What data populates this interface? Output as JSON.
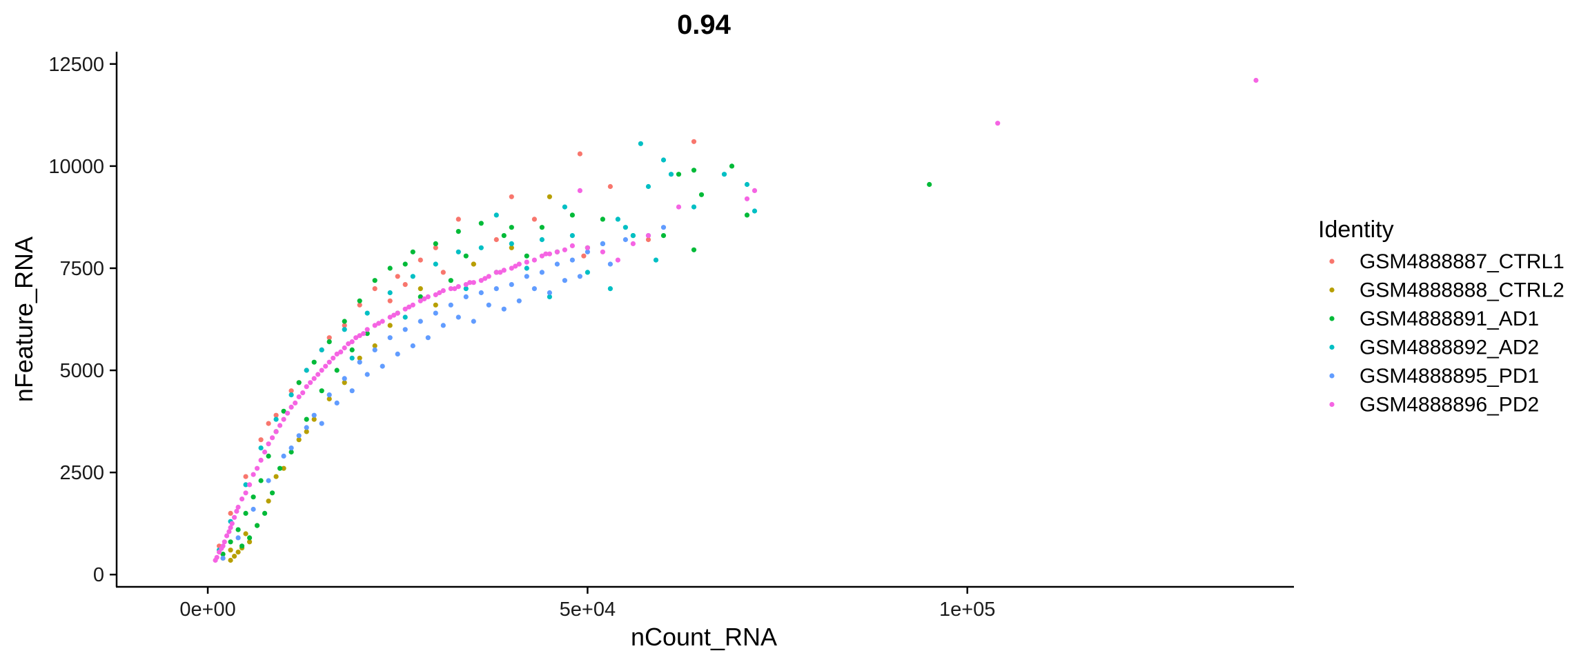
{
  "chart_data": {
    "type": "scatter",
    "title": "0.94",
    "xlabel": "nCount_RNA",
    "ylabel": "nFeature_RNA",
    "xlim": [
      -12000,
      143000
    ],
    "ylim": [
      -300,
      12800
    ],
    "x_ticks": [
      0,
      50000,
      100000
    ],
    "x_tick_labels": [
      "0e+00",
      "5e+04",
      "1e+05"
    ],
    "y_ticks": [
      0,
      2500,
      5000,
      7500,
      10000,
      12500
    ],
    "y_tick_labels": [
      "0",
      "2500",
      "5000",
      "7500",
      "10000",
      "12500"
    ],
    "grid": false,
    "legend": {
      "title": "Identity",
      "position": "right"
    },
    "series": [
      {
        "name": "GSM4888887_CTRL1",
        "color": "#F8766D",
        "points": [
          [
            1500,
            700
          ],
          [
            3000,
            1500
          ],
          [
            5000,
            2400
          ],
          [
            7000,
            3300
          ],
          [
            9000,
            3900
          ],
          [
            11000,
            4500
          ],
          [
            13000,
            5000
          ],
          [
            15000,
            5500
          ],
          [
            18000,
            6100
          ],
          [
            20000,
            6600
          ],
          [
            22000,
            7000
          ],
          [
            25000,
            7300
          ],
          [
            28000,
            7700
          ],
          [
            30000,
            8000
          ],
          [
            33000,
            8700
          ],
          [
            38000,
            8200
          ],
          [
            40000,
            9250
          ],
          [
            43000,
            8700
          ],
          [
            49000,
            10300
          ],
          [
            49500,
            7800
          ],
          [
            53000,
            9500
          ],
          [
            58000,
            8200
          ],
          [
            64000,
            10600
          ],
          [
            8000,
            3700
          ],
          [
            12000,
            4700
          ],
          [
            16000,
            5800
          ],
          [
            24000,
            6700
          ],
          [
            26000,
            7100
          ],
          [
            31000,
            7400
          ],
          [
            35000,
            7600
          ]
        ]
      },
      {
        "name": "GSM4888888_CTRL2",
        "color": "#B79F00",
        "points": [
          [
            2000,
            400
          ],
          [
            3000,
            350
          ],
          [
            3500,
            450
          ],
          [
            4000,
            550
          ],
          [
            4500,
            650
          ],
          [
            5500,
            800
          ],
          [
            6500,
            1200
          ],
          [
            8000,
            1800
          ],
          [
            10000,
            2600
          ],
          [
            12000,
            3300
          ],
          [
            14000,
            3800
          ],
          [
            16000,
            4300
          ],
          [
            20000,
            5300
          ],
          [
            24000,
            6100
          ],
          [
            28000,
            7000
          ],
          [
            35000,
            7600
          ],
          [
            40000,
            8000
          ],
          [
            45000,
            9250
          ],
          [
            3000,
            600
          ],
          [
            5000,
            1000
          ],
          [
            9000,
            2400
          ],
          [
            13000,
            3500
          ],
          [
            18000,
            4700
          ],
          [
            22000,
            5600
          ],
          [
            30000,
            6600
          ]
        ]
      },
      {
        "name": "GSM4888891_AD1",
        "color": "#00BA38",
        "points": [
          [
            2000,
            500
          ],
          [
            3000,
            800
          ],
          [
            4000,
            1100
          ],
          [
            5000,
            1500
          ],
          [
            6000,
            1900
          ],
          [
            7000,
            2300
          ],
          [
            8000,
            2900
          ],
          [
            9000,
            3500
          ],
          [
            10000,
            4000
          ],
          [
            12000,
            4700
          ],
          [
            14000,
            5200
          ],
          [
            16000,
            5700
          ],
          [
            18000,
            6200
          ],
          [
            20000,
            6700
          ],
          [
            22000,
            7200
          ],
          [
            24000,
            7500
          ],
          [
            27000,
            7900
          ],
          [
            30000,
            8100
          ],
          [
            33000,
            8400
          ],
          [
            36000,
            8600
          ],
          [
            40000,
            8500
          ],
          [
            44000,
            8500
          ],
          [
            48000,
            8800
          ],
          [
            52000,
            8700
          ],
          [
            56000,
            8300
          ],
          [
            60000,
            8300
          ],
          [
            64000,
            7950
          ],
          [
            65000,
            9300
          ],
          [
            69000,
            10000
          ],
          [
            71000,
            8800
          ],
          [
            95000,
            9550
          ],
          [
            4500,
            700
          ],
          [
            6500,
            1200
          ],
          [
            8500,
            2000
          ],
          [
            11000,
            3000
          ],
          [
            13000,
            3800
          ],
          [
            15000,
            4500
          ],
          [
            17000,
            5000
          ],
          [
            19000,
            5500
          ],
          [
            21000,
            5900
          ],
          [
            25000,
            6400
          ],
          [
            28000,
            6800
          ],
          [
            32000,
            7200
          ],
          [
            38000,
            7400
          ],
          [
            42000,
            7800
          ],
          [
            46000,
            7900
          ],
          [
            50000,
            8000
          ],
          [
            62000,
            9800
          ],
          [
            64000,
            9900
          ],
          [
            9500,
            2600
          ],
          [
            7500,
            1500
          ],
          [
            5500,
            900
          ],
          [
            26000,
            7600
          ],
          [
            34000,
            7800
          ],
          [
            39000,
            8300
          ]
        ]
      },
      {
        "name": "GSM4888892_AD2",
        "color": "#00BFC4",
        "points": [
          [
            1500,
            600
          ],
          [
            3000,
            1300
          ],
          [
            5000,
            2200
          ],
          [
            7000,
            3100
          ],
          [
            9000,
            3800
          ],
          [
            11000,
            4400
          ],
          [
            13000,
            5000
          ],
          [
            15000,
            5500
          ],
          [
            18000,
            6000
          ],
          [
            21000,
            6400
          ],
          [
            24000,
            6900
          ],
          [
            27000,
            7300
          ],
          [
            30000,
            7600
          ],
          [
            33000,
            7900
          ],
          [
            36000,
            8000
          ],
          [
            40000,
            8100
          ],
          [
            44000,
            8200
          ],
          [
            48000,
            8300
          ],
          [
            52000,
            8100
          ],
          [
            56000,
            8300
          ],
          [
            59000,
            7700
          ],
          [
            61000,
            9800
          ],
          [
            57000,
            10550
          ],
          [
            60000,
            10150
          ],
          [
            71000,
            9550
          ],
          [
            72000,
            8900
          ],
          [
            64000,
            9000
          ],
          [
            45000,
            6800
          ],
          [
            50000,
            7400
          ],
          [
            53000,
            7000
          ],
          [
            55000,
            8500
          ],
          [
            58000,
            9500
          ],
          [
            38000,
            8800
          ],
          [
            42000,
            7500
          ],
          [
            34000,
            7000
          ],
          [
            26000,
            6300
          ],
          [
            19000,
            5300
          ],
          [
            47000,
            9000
          ],
          [
            54000,
            8700
          ],
          [
            68000,
            9800
          ]
        ]
      },
      {
        "name": "GSM4888895_PD1",
        "color": "#619CFF",
        "points": [
          [
            2000,
            400
          ],
          [
            4000,
            900
          ],
          [
            6000,
            1600
          ],
          [
            8000,
            2300
          ],
          [
            10000,
            2900
          ],
          [
            12000,
            3400
          ],
          [
            14000,
            3900
          ],
          [
            16000,
            4400
          ],
          [
            18000,
            4800
          ],
          [
            20000,
            5200
          ],
          [
            22000,
            5500
          ],
          [
            24000,
            5800
          ],
          [
            26000,
            6000
          ],
          [
            28000,
            6200
          ],
          [
            30000,
            6400
          ],
          [
            32000,
            6600
          ],
          [
            34000,
            6800
          ],
          [
            36000,
            6900
          ],
          [
            38000,
            7000
          ],
          [
            40000,
            7100
          ],
          [
            42000,
            7300
          ],
          [
            44000,
            7400
          ],
          [
            46000,
            7600
          ],
          [
            48000,
            7700
          ],
          [
            50000,
            7900
          ],
          [
            52000,
            8100
          ],
          [
            55000,
            8200
          ],
          [
            58000,
            8300
          ],
          [
            60000,
            8500
          ],
          [
            13000,
            3600
          ],
          [
            17000,
            4200
          ],
          [
            21000,
            4900
          ],
          [
            25000,
            5400
          ],
          [
            29000,
            5800
          ],
          [
            33000,
            6300
          ],
          [
            37000,
            6600
          ],
          [
            41000,
            6700
          ],
          [
            45000,
            6900
          ],
          [
            49000,
            7300
          ],
          [
            53000,
            7600
          ],
          [
            11000,
            3100
          ],
          [
            15000,
            3700
          ],
          [
            19000,
            4500
          ],
          [
            23000,
            5100
          ],
          [
            27000,
            5600
          ],
          [
            31000,
            6100
          ],
          [
            35000,
            6200
          ],
          [
            39000,
            6500
          ],
          [
            43000,
            7000
          ],
          [
            47000,
            7200
          ]
        ]
      },
      {
        "name": "GSM4888896_PD2",
        "color": "#F564E3",
        "points": [
          [
            1000,
            350
          ],
          [
            1500,
            550
          ],
          [
            2000,
            700
          ],
          [
            2500,
            950
          ],
          [
            3000,
            1150
          ],
          [
            3500,
            1400
          ],
          [
            4000,
            1650
          ],
          [
            5000,
            2000
          ],
          [
            6000,
            2450
          ],
          [
            7000,
            2800
          ],
          [
            8000,
            3200
          ],
          [
            9000,
            3500
          ],
          [
            10000,
            3800
          ],
          [
            11000,
            4100
          ],
          [
            12000,
            4350
          ],
          [
            13000,
            4600
          ],
          [
            14000,
            4800
          ],
          [
            15000,
            5000
          ],
          [
            16000,
            5200
          ],
          [
            17000,
            5400
          ],
          [
            18000,
            5550
          ],
          [
            19000,
            5700
          ],
          [
            20000,
            5850
          ],
          [
            21000,
            6000
          ],
          [
            22000,
            6100
          ],
          [
            23000,
            6200
          ],
          [
            24000,
            6300
          ],
          [
            25000,
            6400
          ],
          [
            26000,
            6500
          ],
          [
            27000,
            6600
          ],
          [
            28000,
            6700
          ],
          [
            29000,
            6800
          ],
          [
            30000,
            6850
          ],
          [
            31000,
            6950
          ],
          [
            32000,
            7000
          ],
          [
            33000,
            7050
          ],
          [
            34000,
            7100
          ],
          [
            35000,
            7150
          ],
          [
            36000,
            7200
          ],
          [
            37000,
            7300
          ],
          [
            38000,
            7400
          ],
          [
            39000,
            7450
          ],
          [
            40000,
            7500
          ],
          [
            41000,
            7600
          ],
          [
            42000,
            7650
          ],
          [
            43000,
            7700
          ],
          [
            44000,
            7800
          ],
          [
            45000,
            7850
          ],
          [
            46000,
            7900
          ],
          [
            48000,
            8050
          ],
          [
            50000,
            8000
          ],
          [
            52000,
            7900
          ],
          [
            54000,
            7700
          ],
          [
            56000,
            8100
          ],
          [
            58000,
            8300
          ],
          [
            62000,
            9000
          ],
          [
            71000,
            9200
          ],
          [
            72000,
            9400
          ],
          [
            104000,
            11050
          ],
          [
            138000,
            12100
          ],
          [
            1200,
            420
          ],
          [
            1800,
            640
          ],
          [
            2200,
            800
          ],
          [
            2800,
            1050
          ],
          [
            3200,
            1250
          ],
          [
            3800,
            1550
          ],
          [
            4500,
            1850
          ],
          [
            5500,
            2200
          ],
          [
            6500,
            2600
          ],
          [
            7500,
            3000
          ],
          [
            8500,
            3350
          ],
          [
            9500,
            3650
          ],
          [
            10500,
            3950
          ],
          [
            11500,
            4200
          ],
          [
            12500,
            4450
          ],
          [
            13500,
            4700
          ],
          [
            14500,
            4900
          ],
          [
            15500,
            5100
          ],
          [
            16500,
            5300
          ],
          [
            17500,
            5450
          ],
          [
            18500,
            5650
          ],
          [
            19500,
            5800
          ],
          [
            20500,
            5900
          ],
          [
            22500,
            6150
          ],
          [
            24500,
            6350
          ],
          [
            26500,
            6550
          ],
          [
            28500,
            6750
          ],
          [
            30500,
            6900
          ],
          [
            32500,
            7000
          ],
          [
            34500,
            7150
          ],
          [
            36500,
            7250
          ],
          [
            38500,
            7400
          ],
          [
            40500,
            7550
          ],
          [
            44500,
            7850
          ],
          [
            47000,
            7950
          ],
          [
            49000,
            9400
          ]
        ]
      }
    ]
  }
}
